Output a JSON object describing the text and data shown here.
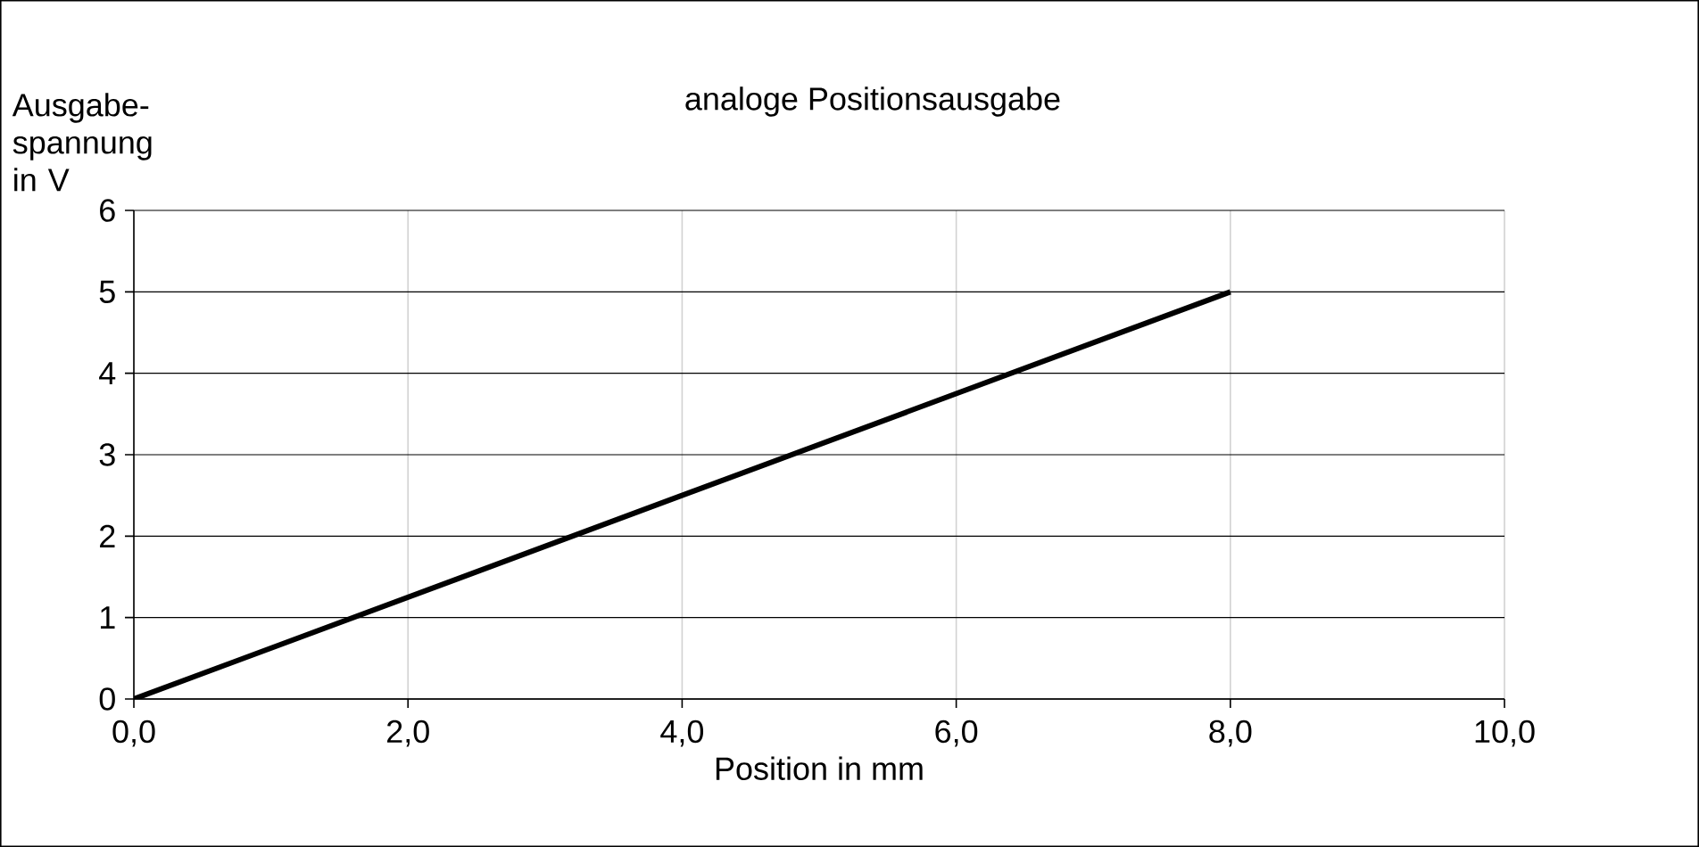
{
  "chart_data": {
    "type": "line",
    "title": "analoge Positionsausgabe",
    "xlabel": "Position in mm",
    "ylabel": "Ausgabe-spannung in V",
    "x": [
      0,
      8
    ],
    "series": [
      {
        "color": "#000000",
        "values": [
          0,
          5
        ]
      }
    ],
    "xlim": [
      0,
      10
    ],
    "ylim": [
      0,
      6
    ],
    "xticks": [
      {
        "value": 0,
        "label": "0,0"
      },
      {
        "value": 2,
        "label": "2,0"
      },
      {
        "value": 4,
        "label": "4,0"
      },
      {
        "value": 6,
        "label": "6,0"
      },
      {
        "value": 8,
        "label": "8,0"
      },
      {
        "value": 10,
        "label": "10,0"
      }
    ],
    "yticks": [
      0,
      1,
      2,
      3,
      4,
      5,
      6
    ],
    "grid": true,
    "marker": "none",
    "line_style": "solid"
  }
}
